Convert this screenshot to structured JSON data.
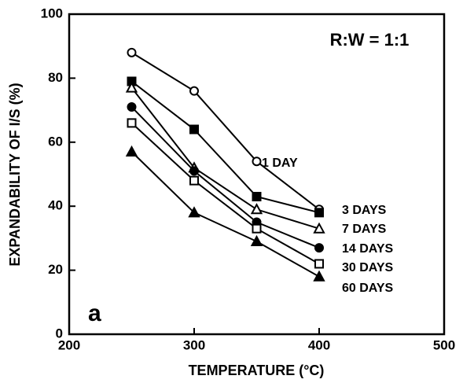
{
  "chart_data": {
    "type": "line",
    "annotations": [
      "R:W = 1:1",
      "a"
    ],
    "x_label": "TEMPERATURE (°C)",
    "y_label": "EXPANDABILITY OF I/S (%)",
    "x": [
      250,
      300,
      350,
      400
    ],
    "series": [
      {
        "name": "1 DAY",
        "color": "#000000",
        "marker": "circle",
        "filled": false,
        "values": [
          88,
          76,
          54,
          39
        ]
      },
      {
        "name": "3 DAYS",
        "color": "#000000",
        "marker": "square",
        "filled": true,
        "values": [
          79,
          64,
          43,
          38
        ]
      },
      {
        "name": "7 DAYS",
        "color": "#000000",
        "marker": "triangle",
        "filled": false,
        "values": [
          77,
          52,
          39,
          33
        ]
      },
      {
        "name": "14 DAYS",
        "color": "#000000",
        "marker": "circle",
        "filled": true,
        "values": [
          71,
          51,
          35,
          27
        ]
      },
      {
        "name": "30 DAYS",
        "color": "#000000",
        "marker": "square",
        "filled": false,
        "values": [
          66,
          48,
          33,
          22
        ]
      },
      {
        "name": "60 DAYS",
        "color": "#000000",
        "marker": "triangle",
        "filled": true,
        "values": [
          57,
          38,
          29,
          18
        ]
      }
    ],
    "xlim": [
      200,
      500
    ],
    "xticks": [
      200,
      300,
      400,
      500
    ],
    "ylim": [
      0,
      100
    ],
    "yticks": [
      0,
      20,
      40,
      60,
      80,
      100
    ]
  }
}
